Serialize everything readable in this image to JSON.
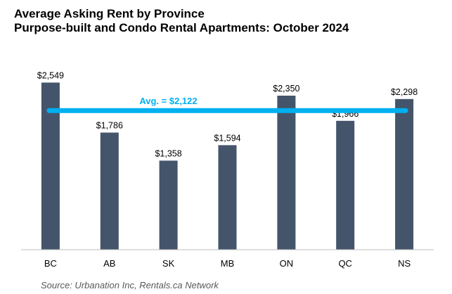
{
  "chart_data": {
    "type": "bar",
    "title": "Average Asking Rent by Province",
    "subtitle": "Purpose-built and Condo Rental Apartments: October 2024",
    "categories": [
      "BC",
      "AB",
      "SK",
      "MB",
      "ON",
      "QC",
      "NS"
    ],
    "values": [
      2549,
      1786,
      1358,
      1594,
      2350,
      1966,
      2298
    ],
    "value_labels": [
      "$2,549",
      "$1,786",
      "$1,358",
      "$1,594",
      "$2,350",
      "$1,966",
      "$2,298"
    ],
    "average": {
      "value": 2122,
      "label": "Avg. = $2,122"
    },
    "xlabel": "",
    "ylabel": "",
    "ylim": [
      0,
      2650
    ],
    "grid": false,
    "legend": "none",
    "colors": {
      "bar": "#44546A",
      "average_line": "#00B0F0",
      "axis": "#BFBFBF"
    }
  },
  "source": "Source: Urbanation Inc, Rentals.ca Network"
}
